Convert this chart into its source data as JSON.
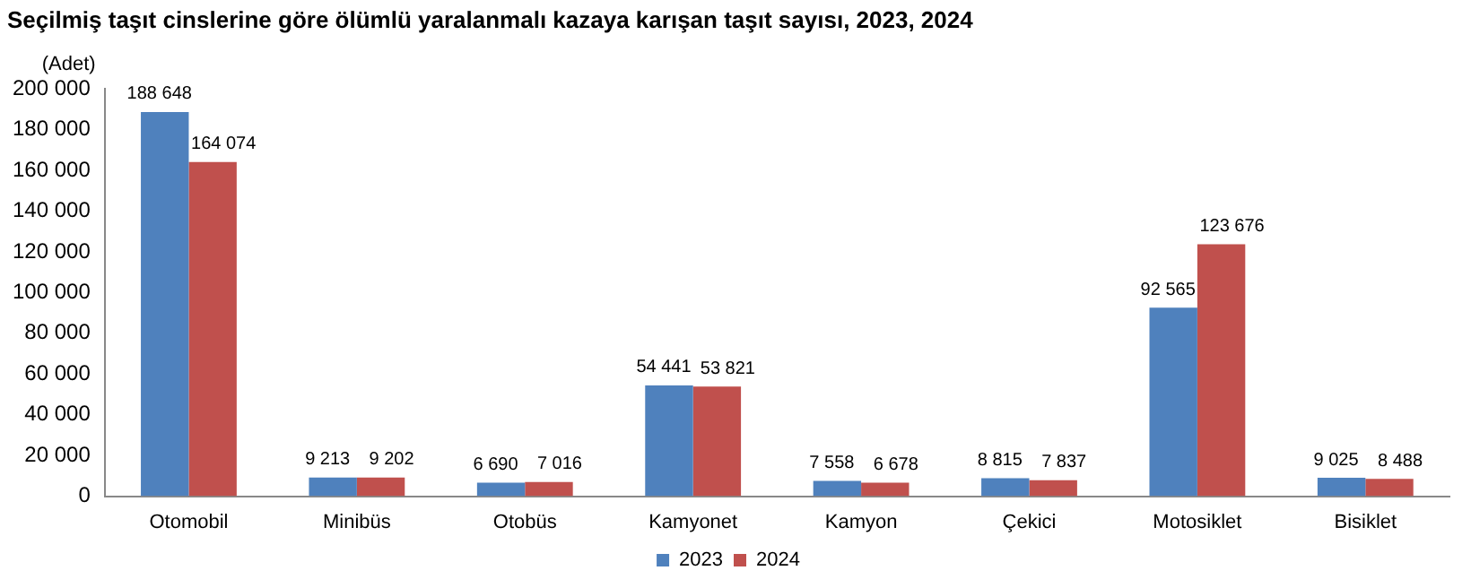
{
  "chart_data": {
    "type": "bar",
    "title": "Seçilmiş taşıt cinslerine göre ölümlü yaralanmalı kazaya karışan taşıt sayısı, 2023, 2024",
    "ylabel": "(Adet)",
    "categories": [
      "Otomobil",
      "Minibüs",
      "Otobüs",
      "Kamyonet",
      "Kamyon",
      "Çekici",
      "Motosiklet",
      "Bisiklet"
    ],
    "series": [
      {
        "name": "2023",
        "color": "#4f81bd",
        "values": [
          188648,
          9213,
          6690,
          54441,
          7558,
          8815,
          92565,
          9025
        ],
        "value_labels": [
          "188 648",
          "9 213",
          "6 690",
          "54 441",
          "7 558",
          "8 815",
          "92 565",
          "9 025"
        ]
      },
      {
        "name": "2024",
        "color": "#c0504d",
        "values": [
          164074,
          9202,
          7016,
          53821,
          6678,
          7837,
          123676,
          8488
        ],
        "value_labels": [
          "164 074",
          "9 202",
          "7 016",
          "53 821",
          "6 678",
          "7 837",
          "123 676",
          "8 488"
        ]
      }
    ],
    "ylim": [
      0,
      200000
    ],
    "yticks": [
      {
        "value": 0,
        "label": "0"
      },
      {
        "value": 20000,
        "label": "20 000"
      },
      {
        "value": 40000,
        "label": "40 000"
      },
      {
        "value": 60000,
        "label": "60 000"
      },
      {
        "value": 80000,
        "label": "80 000"
      },
      {
        "value": 100000,
        "label": "100 000"
      },
      {
        "value": 120000,
        "label": "120 000"
      },
      {
        "value": 140000,
        "label": "140 000"
      },
      {
        "value": 160000,
        "label": "160 000"
      },
      {
        "value": 180000,
        "label": "180 000"
      },
      {
        "value": 200000,
        "label": "200 000"
      }
    ],
    "grid": false,
    "legend": "bottom"
  }
}
